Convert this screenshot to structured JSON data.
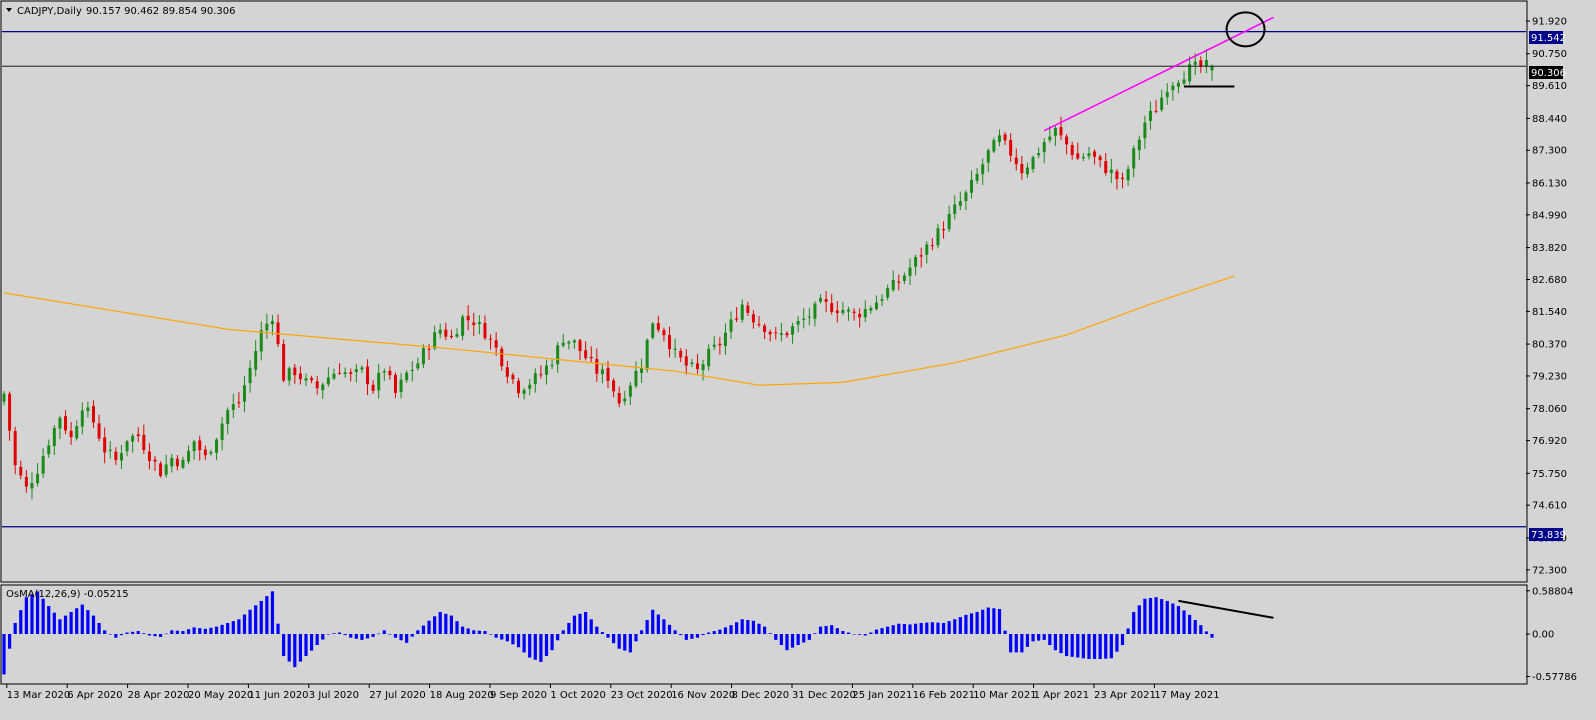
{
  "header": {
    "symbol_info": "CADJPY,Daily",
    "ohlc": "90.157 90.462 89.854 90.306"
  },
  "indicator": {
    "label": "OsMA(12,26,9) -0.05215"
  },
  "price_labels": {
    "resistance": "91.542",
    "current": "90.306",
    "support": "73.839"
  },
  "colors": {
    "background": "#d4d4d4",
    "bull": "#1a8a1a",
    "bear": "#e00000",
    "ma": "#ffa500",
    "trendline": "#ff00ff",
    "hline": "#00008b",
    "histogram": "#0000ff",
    "annotation": "#000000"
  },
  "chart_data": {
    "type": "candlestick",
    "symbol": "CADJPY",
    "timeframe": "Daily",
    "ohlc_last": {
      "open": 90.157,
      "high": 90.462,
      "low": 89.854,
      "close": 90.306
    },
    "price_axis": {
      "ylim": [
        71.9,
        92.6
      ],
      "ticks": [
        "91.920",
        "90.750",
        "89.610",
        "88.440",
        "87.300",
        "86.130",
        "84.990",
        "83.820",
        "82.680",
        "81.540",
        "80.370",
        "79.230",
        "78.060",
        "76.920",
        "75.750",
        "74.610",
        "73.440",
        "72.300"
      ]
    },
    "x_ticks": [
      "13 Mar 2020",
      "6 Apr 2020",
      "28 Apr 2020",
      "20 May 2020",
      "11 Jun 2020",
      "3 Jul 2020",
      "27 Jul 2020",
      "18 Aug 2020",
      "9 Sep 2020",
      "1 Oct 2020",
      "23 Oct 2020",
      "16 Nov 2020",
      "8 Dec 2020",
      "31 Dec 2020",
      "25 Jan 2021",
      "16 Feb 2021",
      "10 Mar 2021",
      "1 Apr 2021",
      "23 Apr 2021",
      "17 May 2021"
    ],
    "horizontal_lines": [
      91.542,
      73.839
    ],
    "current_price_line": 90.306,
    "close_path": [
      [
        0,
        78.6
      ],
      [
        2,
        76.0
      ],
      [
        4,
        75.2
      ],
      [
        6,
        75.9
      ],
      [
        8,
        76.9
      ],
      [
        10,
        77.8
      ],
      [
        12,
        77.0
      ],
      [
        14,
        78.2
      ],
      [
        16,
        77.6
      ],
      [
        18,
        76.6
      ],
      [
        20,
        76.2
      ],
      [
        22,
        77.0
      ],
      [
        24,
        77.1
      ],
      [
        26,
        76.4
      ],
      [
        28,
        75.8
      ],
      [
        30,
        76.3
      ],
      [
        32,
        76.1
      ],
      [
        34,
        76.9
      ],
      [
        36,
        76.3
      ],
      [
        38,
        77.1
      ],
      [
        40,
        78.0
      ],
      [
        42,
        78.3
      ],
      [
        44,
        79.5
      ],
      [
        46,
        80.8
      ],
      [
        48,
        81.4
      ],
      [
        50,
        79.2
      ],
      [
        52,
        79.4
      ],
      [
        54,
        79.0
      ],
      [
        56,
        78.8
      ],
      [
        58,
        79.2
      ],
      [
        60,
        79.5
      ],
      [
        62,
        79.2
      ],
      [
        64,
        79.4
      ],
      [
        66,
        78.8
      ],
      [
        68,
        79.5
      ],
      [
        70,
        78.6
      ],
      [
        72,
        79.3
      ],
      [
        74,
        79.7
      ],
      [
        76,
        80.4
      ],
      [
        78,
        80.9
      ],
      [
        80,
        80.6
      ],
      [
        82,
        81.3
      ],
      [
        84,
        81.2
      ],
      [
        86,
        80.8
      ],
      [
        88,
        80.2
      ],
      [
        90,
        79.4
      ],
      [
        92,
        78.8
      ],
      [
        94,
        79.0
      ],
      [
        96,
        79.3
      ],
      [
        98,
        79.8
      ],
      [
        100,
        80.6
      ],
      [
        102,
        80.4
      ],
      [
        104,
        79.9
      ],
      [
        106,
        79.4
      ],
      [
        108,
        79.2
      ],
      [
        110,
        78.3
      ],
      [
        112,
        79.0
      ],
      [
        114,
        79.7
      ],
      [
        116,
        81.2
      ],
      [
        118,
        80.8
      ],
      [
        120,
        80.0
      ],
      [
        122,
        79.6
      ],
      [
        124,
        79.4
      ],
      [
        126,
        80.0
      ],
      [
        128,
        80.4
      ],
      [
        130,
        81.1
      ],
      [
        132,
        81.8
      ],
      [
        134,
        81.3
      ],
      [
        136,
        81.0
      ],
      [
        138,
        80.6
      ],
      [
        140,
        80.8
      ],
      [
        142,
        81.1
      ],
      [
        144,
        81.4
      ],
      [
        146,
        81.8
      ],
      [
        148,
        81.7
      ],
      [
        150,
        81.6
      ],
      [
        152,
        81.4
      ],
      [
        154,
        81.6
      ],
      [
        156,
        81.9
      ],
      [
        158,
        82.3
      ],
      [
        160,
        82.6
      ],
      [
        162,
        83.1
      ],
      [
        164,
        83.6
      ],
      [
        166,
        84.1
      ],
      [
        168,
        84.6
      ],
      [
        170,
        85.2
      ],
      [
        172,
        85.7
      ],
      [
        174,
        86.4
      ],
      [
        176,
        87.2
      ],
      [
        178,
        87.7
      ],
      [
        180,
        87.2
      ],
      [
        182,
        86.6
      ],
      [
        184,
        87.0
      ],
      [
        186,
        87.6
      ],
      [
        188,
        88.0
      ],
      [
        190,
        87.5
      ],
      [
        192,
        87.0
      ],
      [
        194,
        87.2
      ],
      [
        196,
        86.8
      ],
      [
        198,
        86.5
      ],
      [
        200,
        86.1
      ],
      [
        202,
        87.2
      ],
      [
        204,
        88.3
      ],
      [
        206,
        88.8
      ],
      [
        208,
        89.6
      ],
      [
        210,
        89.9
      ],
      [
        212,
        90.2
      ],
      [
        214,
        90.3
      ],
      [
        216,
        90.306
      ]
    ],
    "moving_average": {
      "color": "orange",
      "points": [
        [
          0,
          82.2
        ],
        [
          40,
          80.9
        ],
        [
          80,
          80.2
        ],
        [
          120,
          79.4
        ],
        [
          135,
          78.9
        ],
        [
          150,
          79.0
        ],
        [
          170,
          79.7
        ],
        [
          190,
          80.7
        ],
        [
          205,
          81.8
        ],
        [
          220,
          82.8
        ]
      ]
    },
    "trendline": {
      "color": "magenta",
      "from": [
        186,
        88.0
      ],
      "to": [
        227,
        92.05
      ]
    },
    "support_marker": {
      "from": [
        211,
        89.58
      ],
      "to": [
        220,
        89.58
      ]
    },
    "circle_annotation": {
      "at": [
        222,
        91.62
      ]
    },
    "osma": {
      "name": "OsMA(12,26,9)",
      "last_value": -0.05215,
      "ylim": [
        -0.68,
        0.68
      ],
      "ticks": [
        "0.58804",
        "0.00",
        "-0.57786"
      ],
      "divergence_line": {
        "from": [
          210,
          0.45
        ],
        "to": [
          227,
          0.22
        ]
      },
      "bars": [
        [
          0,
          -0.55
        ],
        [
          2,
          0.15
        ],
        [
          4,
          0.5
        ],
        [
          6,
          0.58
        ],
        [
          8,
          0.38
        ],
        [
          10,
          0.2
        ],
        [
          12,
          0.3
        ],
        [
          14,
          0.4
        ],
        [
          16,
          0.25
        ],
        [
          18,
          0.05
        ],
        [
          20,
          -0.05
        ],
        [
          22,
          0.02
        ],
        [
          24,
          0.04
        ],
        [
          26,
          -0.02
        ],
        [
          28,
          -0.04
        ],
        [
          30,
          0.05
        ],
        [
          32,
          0.04
        ],
        [
          34,
          0.09
        ],
        [
          36,
          0.07
        ],
        [
          38,
          0.1
        ],
        [
          40,
          0.15
        ],
        [
          42,
          0.2
        ],
        [
          44,
          0.33
        ],
        [
          46,
          0.45
        ],
        [
          48,
          0.58
        ],
        [
          50,
          -0.3
        ],
        [
          52,
          -0.45
        ],
        [
          54,
          -0.3
        ],
        [
          56,
          -0.15
        ],
        [
          58,
          0.0
        ],
        [
          60,
          0.02
        ],
        [
          62,
          -0.05
        ],
        [
          64,
          -0.08
        ],
        [
          66,
          -0.04
        ],
        [
          68,
          0.05
        ],
        [
          70,
          -0.05
        ],
        [
          72,
          -0.12
        ],
        [
          74,
          0.05
        ],
        [
          76,
          0.18
        ],
        [
          78,
          0.3
        ],
        [
          80,
          0.25
        ],
        [
          82,
          0.1
        ],
        [
          84,
          0.05
        ],
        [
          86,
          0.04
        ],
        [
          88,
          -0.05
        ],
        [
          90,
          -0.1
        ],
        [
          92,
          -0.18
        ],
        [
          94,
          -0.32
        ],
        [
          96,
          -0.38
        ],
        [
          98,
          -0.22
        ],
        [
          100,
          0.05
        ],
        [
          102,
          0.25
        ],
        [
          104,
          0.3
        ],
        [
          106,
          0.1
        ],
        [
          108,
          -0.05
        ],
        [
          110,
          -0.2
        ],
        [
          112,
          -0.25
        ],
        [
          114,
          0.05
        ],
        [
          116,
          0.33
        ],
        [
          118,
          0.2
        ],
        [
          120,
          0.05
        ],
        [
          122,
          -0.08
        ],
        [
          124,
          -0.05
        ],
        [
          126,
          0.02
        ],
        [
          128,
          0.06
        ],
        [
          130,
          0.12
        ],
        [
          132,
          0.2
        ],
        [
          134,
          0.18
        ],
        [
          136,
          0.1
        ],
        [
          138,
          -0.08
        ],
        [
          140,
          -0.22
        ],
        [
          142,
          -0.15
        ],
        [
          144,
          -0.08
        ],
        [
          146,
          0.1
        ],
        [
          148,
          0.12
        ],
        [
          150,
          0.04
        ],
        [
          152,
          0.0
        ],
        [
          154,
          -0.02
        ],
        [
          156,
          0.06
        ],
        [
          158,
          0.1
        ],
        [
          160,
          0.14
        ],
        [
          162,
          0.13
        ],
        [
          164,
          0.15
        ],
        [
          166,
          0.16
        ],
        [
          168,
          0.15
        ],
        [
          170,
          0.2
        ],
        [
          172,
          0.26
        ],
        [
          174,
          0.3
        ],
        [
          176,
          0.36
        ],
        [
          178,
          0.34
        ],
        [
          180,
          -0.25
        ],
        [
          182,
          -0.25
        ],
        [
          184,
          -0.1
        ],
        [
          186,
          -0.08
        ],
        [
          188,
          -0.22
        ],
        [
          190,
          -0.3
        ],
        [
          192,
          -0.32
        ],
        [
          194,
          -0.34
        ],
        [
          196,
          -0.34
        ],
        [
          198,
          -0.33
        ],
        [
          200,
          -0.15
        ],
        [
          202,
          0.3
        ],
        [
          204,
          0.48
        ],
        [
          206,
          0.5
        ],
        [
          208,
          0.45
        ],
        [
          210,
          0.38
        ],
        [
          212,
          0.26
        ],
        [
          214,
          0.12
        ],
        [
          216,
          -0.05
        ]
      ]
    }
  }
}
